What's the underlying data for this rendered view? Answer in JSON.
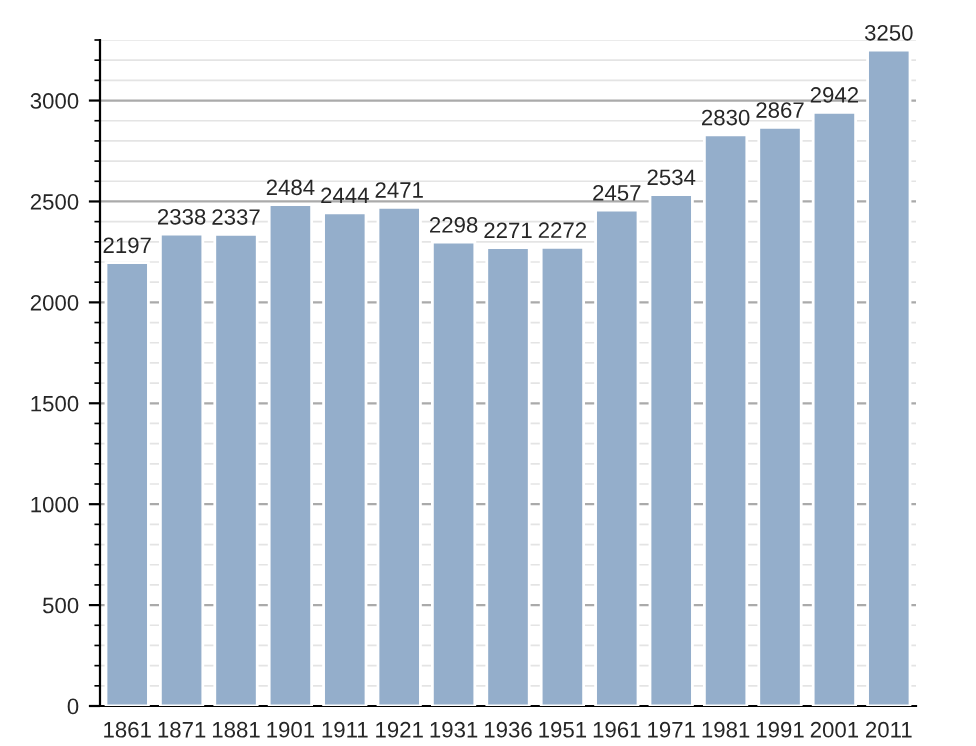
{
  "chart_data": {
    "type": "bar",
    "categories": [
      "1861",
      "1871",
      "1881",
      "1901",
      "1911",
      "1921",
      "1931",
      "1936",
      "1951",
      "1961",
      "1971",
      "1981",
      "1991",
      "2001",
      "2011"
    ],
    "values": [
      2197,
      2338,
      2337,
      2484,
      2444,
      2471,
      2298,
      2271,
      2272,
      2457,
      2534,
      2830,
      2867,
      2942,
      3250
    ],
    "color": "#94aecb",
    "ylim": [
      0,
      3300
    ],
    "yticks": [
      0,
      500,
      1000,
      1500,
      2000,
      2500,
      3000
    ],
    "grid": "y",
    "data_labels": true
  }
}
